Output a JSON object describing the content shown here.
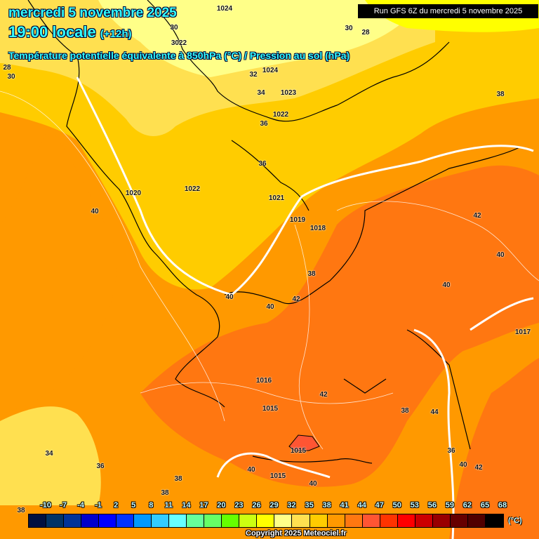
{
  "header": {
    "date": "mercredi 5 novembre 2025",
    "time": "19:00 locale",
    "lead": "(+12h)",
    "parameter": "Température potentielle équivalente à 850hPa (°C) / Pression au sol (hPa)",
    "run": "Run GFS 6Z du mercredi 5 novembre 2025"
  },
  "legend": {
    "unit": "(°C)",
    "ticks": [
      "-10",
      "-7",
      "-4",
      "-1",
      "2",
      "5",
      "8",
      "11",
      "14",
      "17",
      "20",
      "23",
      "26",
      "29",
      "32",
      "35",
      "38",
      "41",
      "44",
      "47",
      "50",
      "53",
      "56",
      "59",
      "62",
      "65",
      "68"
    ],
    "colors": [
      "#001040",
      "#003366",
      "#003399",
      "#0000cc",
      "#0000ff",
      "#0033ff",
      "#0099ff",
      "#33ccff",
      "#66ffff",
      "#66ff99",
      "#66ff66",
      "#66ff00",
      "#ccff11",
      "#ffff00",
      "#ffff88",
      "#ffe050",
      "#ffcc00",
      "#ff9900",
      "#ff7711",
      "#ff5533",
      "#ff3300",
      "#ff0000",
      "#cc0000",
      "#990000",
      "#660000",
      "#500000",
      "#000000"
    ]
  },
  "map_labels": [
    "3022",
    "1024",
    "30",
    "30",
    "28",
    "28",
    "30",
    "32",
    "1024",
    "34",
    "1023",
    "1022",
    "36",
    "38",
    "36",
    "1022",
    "1021",
    "40",
    "1020",
    "1019",
    "1018",
    "38",
    "40",
    "40",
    "42",
    "42",
    "40",
    "40",
    "1017",
    "1016",
    "42",
    "1015",
    "38",
    "44",
    "1015",
    "36",
    "40",
    "42",
    "34",
    "36",
    "38",
    "40",
    "38",
    "1015",
    "40",
    "38"
  ],
  "copyright": "Copyright 2025 Meteociel.fr"
}
